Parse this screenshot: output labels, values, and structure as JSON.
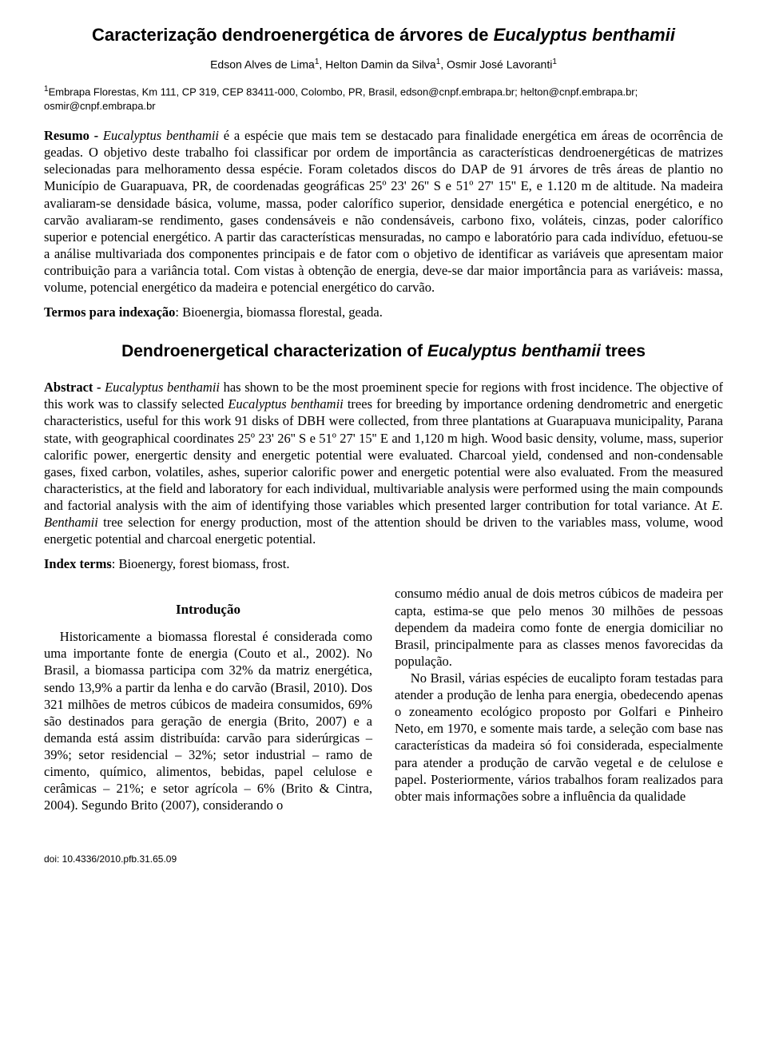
{
  "title_plain": "Caracterização dendroenergética de árvores de ",
  "title_species": "Eucalyptus benthamii",
  "authors_html": "Edson Alves de Lima<sup class='sup'>1</sup>, Helton Damin da Silva<sup class='sup'>1</sup>, Osmir José Lavoranti<sup class='sup'>1</sup>",
  "affiliation_html": "<sup class='sup'>1</sup>Embrapa Florestas, Km 111, CP 319, CEP 83411-000, Colombo, PR, Brasil, edson@cnpf.embrapa.br; helton@cnpf.embrapa.br; osmir@cnpf.embrapa.br",
  "resumo_html": "<span class='lead'>Resumo - </span><span class='ital'>Eucalyptus benthamii</span> é a espécie que mais tem se destacado para finalidade energética em áreas de ocorrência de geadas. O objetivo deste trabalho foi classificar por ordem de importância as características dendroenergéticas de matrizes selecionadas para melhoramento dessa espécie. Foram coletados discos do DAP de 91 árvores de três áreas de plantio no Município de Guarapuava, PR, de coordenadas geográficas 25º 23' 26'' S e 51º 27' 15'' E, e 1.120 m de altitude. Na madeira avaliaram-se densidade básica, volume, massa, poder calorífico superior, densidade energética e potencial energético, e no carvão avaliaram-se rendimento, gases condensáveis e não condensáveis, carbono fixo, voláteis, cinzas, poder calorífico superior e potencial energético. A partir das características mensuradas, no campo e laboratório para cada indivíduo, efetuou-se a análise multivariada dos componentes principais e de fator com o objetivo de identificar as variáveis que apresentam maior contribuição para a variância total. Com vistas à obtenção de energia, deve-se dar maior importância para as variáveis: massa, volume, potencial energético da madeira e potencial energético do carvão.",
  "termos_html": "<span class='lead'>Termos para indexação</span>: Bioenergia, biomassa florestal, geada.",
  "subtitle_plain_a": "Dendroenergetical characterization  of  ",
  "subtitle_species": "Eucalyptus benthamii",
  "subtitle_plain_b": " trees",
  "abstract_html": "<span class='lead'>Abstract - </span><span class='ital'>Eucalyptus benthamii</span> has shown to be the most proeminent specie for regions with frost incidence. The objective of this work was to classify selected <span class='ital'>Eucalyptus benthamii</span> trees for breeding by importance ordening dendrometric and energetic characteristics, useful for this work 91 disks of DBH were collected, from three plantations at Guarapuava municipality, Parana state,  with geographical coordinates   25º 23' 26'' S e 51º 27' 15'' E and 1,120 m high. Wood basic density, volume, mass, superior calorific power, energertic density and energetic potential were evaluated. Charcoal yield, condensed and non-condensable gases, fixed carbon, volatiles, ashes, superior calorific power and energetic potential were also evaluated. From the measured characteristics, at the field and laboratory for each individual, multivariable analysis were performed using the main compounds and factorial analysis with the aim of identifying those variables which presented larger contribution for total variance. At <span class='ital'>E. Benthamii</span> tree selection for energy production, most of the attention should be driven to the variables mass, volume, wood energetic potential and charcoal energetic potential.",
  "index_html": "<span class='lead'>Index terms</span>: Bioenergy, forest biomass, frost.",
  "intro_heading": "Introdução",
  "col_left_html": "<p>Historicamente a biomassa florestal é considerada como uma importante fonte de energia (Couto et al., 2002). No Brasil, a biomassa participa com 32% da matriz energética, sendo 13,9% a partir da lenha e do carvão (Brasil, 2010). Dos 321 milhões de metros cúbicos de madeira consumidos, 69% são destinados para geração de energia (Brito, 2007) e a demanda está assim distribuída: carvão para siderúrgicas – 39%; setor residencial – 32%; setor industrial – ramo de cimento, químico, alimentos, bebidas, papel celulose e cerâmicas – 21%; e setor agrícola – 6% (Brito &amp; Cintra, 2004). Segundo Brito (2007), considerando o</p>",
  "col_right_html": "<p style='text-indent:0'>consumo médio anual de dois metros cúbicos de madeira per capta, estima-se que pelo menos 30 milhões de pessoas dependem da madeira como fonte de energia domiciliar no Brasil, principalmente para as classes menos favorecidas da população.</p><p>No Brasil, várias espécies de eucalipto foram testadas para atender a produção de lenha para energia, obedecendo apenas o zoneamento ecológico proposto por Golfari e Pinheiro Neto, em 1970, e somente mais tarde, a seleção com base nas características da madeira só foi considerada, especialmente para atender a produção de carvão vegetal e de celulose e papel. Posteriormente, vários trabalhos foram realizados para obter mais informações sobre a influência da qualidade</p>",
  "doi": "doi: 10.4336/2010.pfb.31.65.09"
}
